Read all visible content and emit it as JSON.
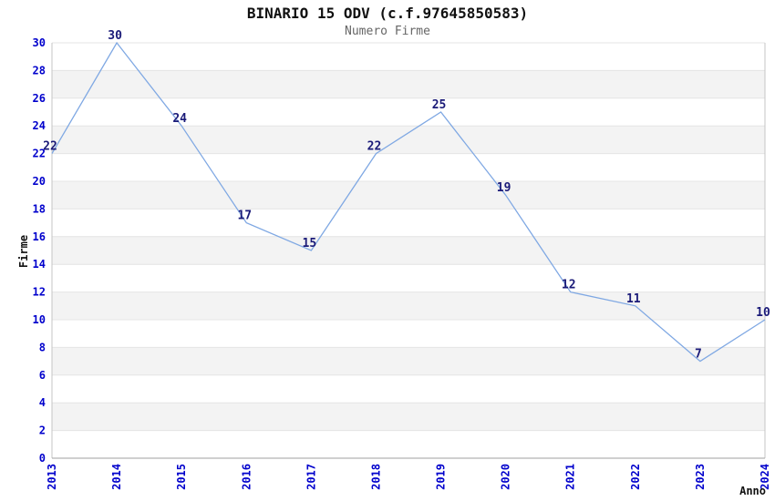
{
  "title": "BINARIO 15 ODV (c.f.97645850583)",
  "subtitle": "Numero Firme",
  "chart_data": {
    "type": "line",
    "x": [
      "2013",
      "2014",
      "2015",
      "2016",
      "2017",
      "2018",
      "2019",
      "2020",
      "2021",
      "2022",
      "2023",
      "2024"
    ],
    "values": [
      22,
      30,
      24,
      17,
      15,
      22,
      25,
      19,
      12,
      11,
      7,
      10
    ],
    "title": "BINARIO 15 ODV (c.f.97645850583)",
    "subtitle": "Numero Firme",
    "xlabel": "Anno",
    "ylabel": "Firme",
    "ylim": [
      0,
      30
    ],
    "ytick_step": 2,
    "grid": "alternating horizontal bands every 2 units, gray bands on 2-4, 6-8, 10-12, 14-16, 18-20, 22-24, 26-28",
    "legend": "none",
    "point_labels_visible": true,
    "colors": {
      "line": "#7fa8e3",
      "tick_label": "#0000cc",
      "point_label": "#1a1a78",
      "band": "#f3f3f3",
      "grid_line": "#e4e4e4",
      "plot_border": "#c4c4c4",
      "axis_baseline": "#a0a0a0",
      "title": "#111111",
      "subtitle": "#666666",
      "axis_label": "#111111",
      "background": "#ffffff"
    }
  }
}
